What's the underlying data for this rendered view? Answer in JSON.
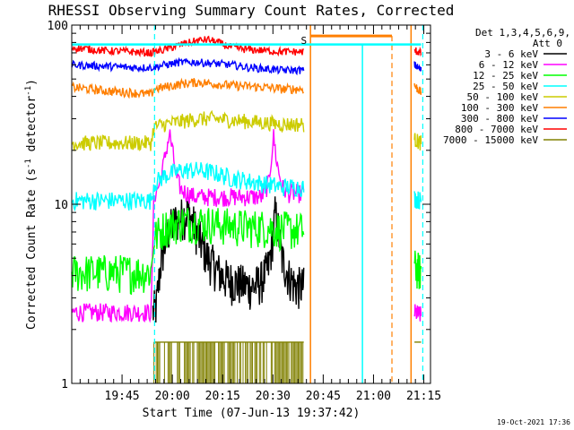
{
  "chart_data": {
    "type": "line",
    "title": "RHESSI Observing Summary Count Rates, Corrected",
    "xlabel": "Start Time (07-Jun-13 19:37:42)",
    "ylabel_main": "Corrected Count Rate (s",
    "ylabel_sup1": "-1",
    "ylabel_mid": " detector",
    "ylabel_sup2": "-1",
    "ylabel_end": ")",
    "yscale": "log",
    "ylim": [
      1,
      100
    ],
    "xlim_min": [
      -7.7,
      99.3
    ],
    "y_ticks": [
      {
        "value": 1,
        "label": "1"
      },
      {
        "value": 10,
        "label": "10"
      },
      {
        "value": 100,
        "label": "100"
      }
    ],
    "x_ticks": [
      {
        "value": 7.3,
        "label": "19:45"
      },
      {
        "value": 22.3,
        "label": "20:00"
      },
      {
        "value": 37.3,
        "label": "20:15"
      },
      {
        "value": 52.3,
        "label": "20:30"
      },
      {
        "value": 67.3,
        "label": "20:45"
      },
      {
        "value": 82.3,
        "label": "21:00"
      },
      {
        "value": 97.3,
        "label": "21:15"
      }
    ],
    "legend_header": [
      "Det 1,3,4,5,6,9,",
      "Att 0"
    ],
    "series": [
      {
        "name": "3 - 6 keV",
        "color": "#000000",
        "x": [
          16.5,
          17.5,
          19,
          21,
          23,
          25,
          27,
          29,
          31,
          33,
          35,
          37,
          39,
          41,
          43,
          45,
          47,
          49,
          51,
          52,
          53,
          54,
          55,
          57,
          59,
          61.5
        ],
        "y": [
          2.5,
          2.7,
          5,
          7,
          8,
          8.5,
          9,
          7.5,
          6,
          5,
          4.5,
          4,
          3.8,
          3.7,
          3.6,
          3.5,
          3.5,
          3.8,
          4.5,
          6,
          9,
          7,
          5,
          4,
          3.5,
          3.5
        ]
      },
      {
        "name": "6 - 12 keV",
        "color": "#ff00ff",
        "x": [
          -7.7,
          16,
          16.8,
          18.5,
          20,
          21.5,
          22.5,
          23.5,
          25,
          27,
          29,
          33,
          37,
          41,
          45,
          49,
          51,
          52.5,
          53.5,
          55,
          57,
          61.5
        ],
        "y": [
          2.5,
          2.5,
          11,
          13,
          18,
          25,
          19,
          14,
          12,
          11.5,
          11,
          11,
          11,
          11,
          11,
          11,
          13,
          24,
          17,
          12.5,
          11.5,
          11.5
        ]
      },
      {
        "name": "12 - 25 keV",
        "color": "#00ff00",
        "x": [
          -7.7,
          16,
          16.8,
          20,
          25,
          30,
          35,
          40,
          45,
          50,
          55,
          61.5
        ],
        "y": [
          4.2,
          4.2,
          6.5,
          7.5,
          8,
          8,
          7.8,
          7.6,
          7.5,
          7.5,
          7.3,
          7.2
        ]
      },
      {
        "name": "25 - 50 keV",
        "color": "#00ffff",
        "x": [
          -7.7,
          16,
          16.8,
          20,
          25,
          30,
          35,
          40,
          45,
          50,
          55,
          61.5
        ],
        "y": [
          10.5,
          10.5,
          13,
          14.5,
          15.5,
          15.5,
          15,
          14,
          13.5,
          13,
          12.5,
          12.5
        ]
      },
      {
        "name": "50 - 100 keV",
        "color": "#cccc00",
        "x": [
          -7.7,
          16,
          16.8,
          20,
          25,
          30,
          35,
          40,
          45,
          50,
          55,
          61.5
        ],
        "y": [
          22,
          22,
          27,
          28,
          29,
          30,
          30,
          29.5,
          29,
          28.5,
          28,
          28
        ]
      },
      {
        "name": "100 - 300 keV",
        "color": "#ff7f00",
        "x": [
          -7.7,
          2,
          10,
          16,
          16.8,
          20,
          25,
          30,
          35,
          40,
          45,
          50,
          55,
          61.5
        ],
        "y": [
          45,
          43,
          42,
          41,
          44,
          45,
          47,
          48,
          47,
          46,
          45.5,
          45,
          44,
          44
        ]
      },
      {
        "name": "300 - 800 keV",
        "color": "#0000ff",
        "x": [
          -7.7,
          2,
          10,
          16,
          20,
          25,
          30,
          35,
          40,
          45,
          50,
          55,
          61.5
        ],
        "y": [
          60,
          59,
          58,
          58,
          60,
          62,
          62,
          61,
          60,
          58,
          57,
          56,
          56
        ]
      },
      {
        "name": "800 - 7000 keV",
        "color": "#ff0000",
        "x": [
          -7.7,
          2,
          10,
          16,
          20,
          25,
          30,
          33,
          36,
          39,
          42,
          45,
          50,
          55,
          61.5
        ],
        "y": [
          75,
          72,
          71,
          70,
          73,
          78,
          82,
          83,
          80,
          76,
          74,
          73,
          72,
          71,
          71
        ]
      },
      {
        "name": "7000 - 15000 keV",
        "color": "#808000",
        "x": [
          16.8,
          61.5
        ],
        "y": [
          1.7,
          1.7
        ]
      }
    ],
    "post_gap_series_x": [
      94.5,
      96.5
    ],
    "post_gap_series_y": {
      "800 - 7000 keV": [
        72,
        70
      ],
      "300 - 800 keV": [
        60,
        56
      ],
      "100 - 300 keV": [
        46,
        42
      ],
      "50 - 100 keV": [
        23,
        22
      ],
      "25 - 50 keV": [
        10.8,
        10.5
      ],
      "12 - 25 keV": [
        4.5,
        4.2
      ],
      "6 - 12 keV": [
        2.5,
        2.4
      ],
      "7000 - 15000 keV": [
        1.7,
        1.7
      ]
    },
    "annotations": {
      "saa_marker": "S",
      "saa_x": 63.5,
      "saa_y": 82,
      "saa_color": "#ff7f00",
      "orange_bar_x": [
        63.5,
        87.8
      ],
      "orange_bar_y": 87,
      "cyan_bar_x": [
        -7.7,
        96.5
      ],
      "cyan_bar_y": 78,
      "cyan_vertical_solid": [
        79.0
      ],
      "cyan_vertical_dashed": [
        17.0,
        97.0
      ],
      "orange_vertical_solid": [
        63.5,
        93.5
      ],
      "orange_vertical_dashed": [
        87.8
      ]
    }
  },
  "footer": {
    "timestamp": "19-Oct-2021 17:36"
  }
}
